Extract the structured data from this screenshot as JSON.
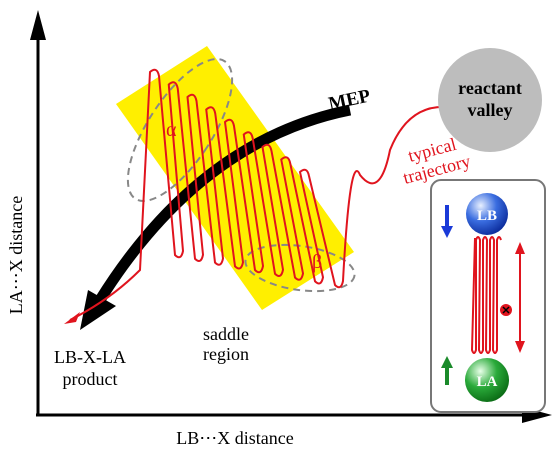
{
  "axes": {
    "x_label": "LB⋯X distance",
    "y_label": "LA⋯X distance"
  },
  "labels": {
    "reactant": [
      "reactant",
      "valley"
    ],
    "mep": "MEP",
    "trajectory": [
      "typical",
      "trajectory"
    ],
    "alpha": "α",
    "beta": "β",
    "saddle": [
      "saddle",
      "region"
    ],
    "product": [
      "LB-X-LA",
      "product"
    ]
  },
  "inset": {
    "top_sphere": "LB",
    "bottom_sphere": "LA"
  }
}
